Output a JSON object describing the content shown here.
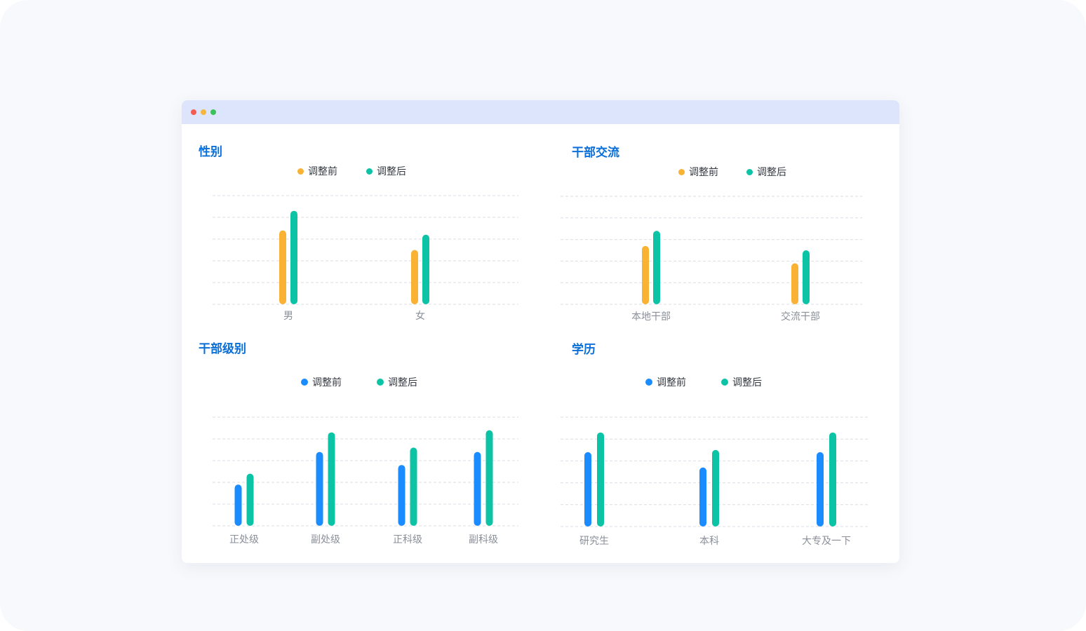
{
  "colors": {
    "before_orange": "#f9b233",
    "before_blue": "#1a8cff",
    "after": "#0dc3a6",
    "grid": "#d9dde3",
    "title": "#0a6fd8",
    "titlebar": "#dce5fb",
    "dot_red": "#f25c54",
    "dot_yellow": "#f5b73b",
    "dot_green": "#3cc25c"
  },
  "window": {
    "controls": [
      "close-dot",
      "minimize-dot",
      "maximize-dot"
    ]
  },
  "chart_data": [
    {
      "id": "gender",
      "type": "bar",
      "title": "性别",
      "categories": [
        "男",
        "女"
      ],
      "series": [
        {
          "name": "调整前",
          "values": [
            3.4,
            2.5
          ],
          "color": "#f9b233"
        },
        {
          "name": "调整后",
          "values": [
            4.3,
            3.2
          ],
          "color": "#0dc3a6"
        }
      ],
      "ylim": [
        0,
        5
      ],
      "grid": true,
      "legend": "top-center"
    },
    {
      "id": "exchange",
      "type": "bar",
      "title": "干部交流",
      "categories": [
        "本地干部",
        "交流干部"
      ],
      "series": [
        {
          "name": "调整前",
          "values": [
            2.7,
            1.9
          ],
          "color": "#f9b233"
        },
        {
          "name": "调整后",
          "values": [
            3.4,
            2.5
          ],
          "color": "#0dc3a6"
        }
      ],
      "ylim": [
        0,
        5
      ],
      "grid": true,
      "legend": "top-center"
    },
    {
      "id": "rank",
      "type": "bar",
      "title": "干部级别",
      "categories": [
        "正处级",
        "副处级",
        "正科级",
        "副科级"
      ],
      "series": [
        {
          "name": "调整前",
          "values": [
            1.9,
            3.4,
            2.8,
            3.4
          ],
          "color": "#1a8cff"
        },
        {
          "name": "调整后",
          "values": [
            2.4,
            4.3,
            3.6,
            4.4
          ],
          "color": "#0dc3a6"
        }
      ],
      "ylim": [
        0,
        5
      ],
      "grid": true,
      "legend": "top-center"
    },
    {
      "id": "education",
      "type": "bar",
      "title": "学历",
      "categories": [
        "研究生",
        "本科",
        "大专及一下"
      ],
      "series": [
        {
          "name": "调整前",
          "values": [
            3.4,
            2.7,
            3.4
          ],
          "color": "#1a8cff"
        },
        {
          "name": "调整后",
          "values": [
            4.3,
            3.5,
            4.3
          ],
          "color": "#0dc3a6"
        }
      ],
      "ylim": [
        0,
        5
      ],
      "grid": true,
      "legend": "top-center"
    }
  ]
}
